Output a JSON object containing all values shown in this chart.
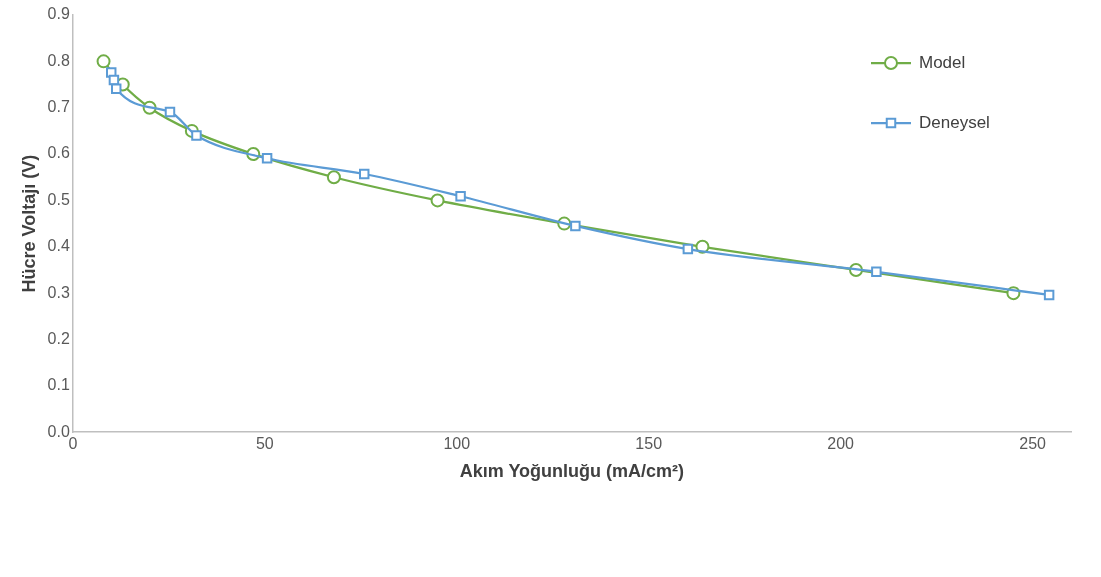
{
  "chart_data": {
    "type": "line",
    "xlabel": "Akım Yoğunluğu (mA/cm²)",
    "ylabel": "Hücre Voltajı (V)",
    "xlim": [
      0,
      260
    ],
    "xticks": [
      0,
      50,
      100,
      150,
      200,
      250
    ],
    "ylim": [
      0,
      0.9
    ],
    "yticks": [
      {
        "value": 0,
        "label": "0.0"
      },
      0.1,
      0.2,
      0.3,
      0.4,
      0.5,
      0.6,
      0.7,
      0.8,
      0.9
    ],
    "grid": false,
    "legend": "top right",
    "line_style": "solid",
    "series": [
      {
        "name": "Model",
        "color": "#70ad47",
        "marker": "circle",
        "x": [
          8,
          13,
          20,
          31,
          47,
          68,
          95,
          128,
          164,
          204,
          245
        ],
        "values": [
          0.8,
          0.75,
          0.7,
          0.65,
          0.6,
          0.55,
          0.5,
          0.45,
          0.4,
          0.35,
          0.3
        ]
      },
      {
        "name": "Deneysel",
        "color": "#5b9bd5",
        "marker": "square",
        "x": [
          10,
          10.7,
          11.3,
          25.3,
          32.2,
          50.6,
          75.9,
          101,
          130.9,
          160.2,
          209.3,
          254.3
        ],
        "values": [
          0.776,
          0.76,
          0.741,
          0.691,
          0.64,
          0.591,
          0.557,
          0.509,
          0.445,
          0.395,
          0.346,
          0.296
        ]
      }
    ]
  }
}
